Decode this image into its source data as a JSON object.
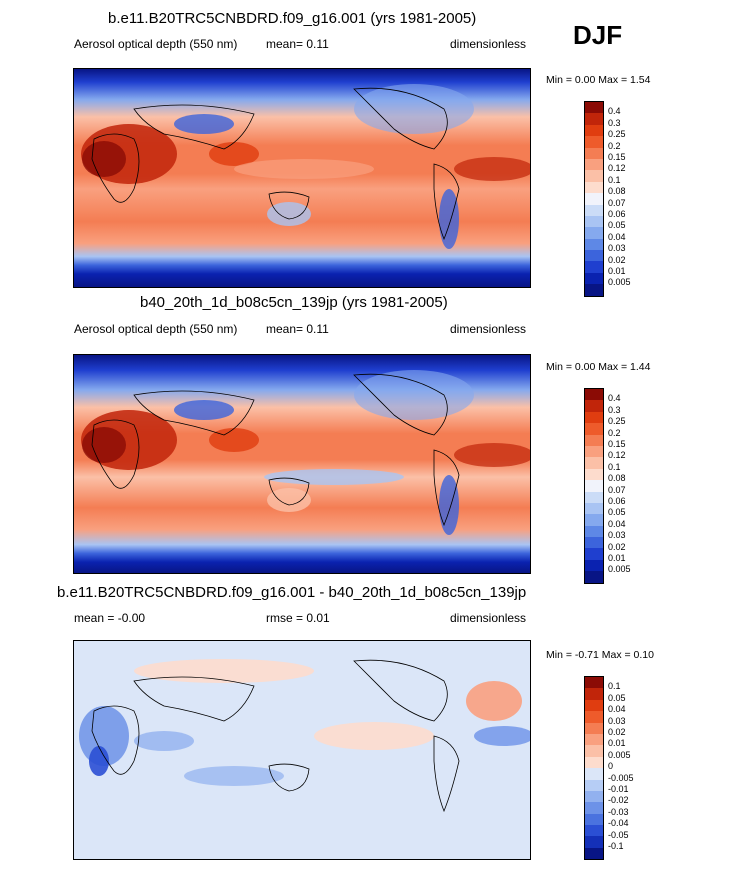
{
  "season": "DJF",
  "panels": [
    {
      "title": "b.e11.B20TRC5CNBDRD.f09_g16.001 (yrs 1981-2005)",
      "left": "Aerosol optical depth (550 nm)",
      "center": "mean=  0.11",
      "right": "dimensionless",
      "minmax": "Min =  0.00 Max =  1.54"
    },
    {
      "title": "b40_20th_1d_b08c5cn_139jp (yrs 1981-2005)",
      "left": "Aerosol optical depth (550 nm)",
      "center": "mean=  0.11",
      "right": "dimensionless",
      "minmax": "Min =  0.00 Max =  1.44"
    },
    {
      "title": "b.e11.B20TRC5CNBDRD.f09_g16.001 - b40_20th_1d_b08c5cn_139jp",
      "left": "mean =  -0.00",
      "center": "rmse =  0.01",
      "right": "dimensionless",
      "minmax": "Min =  -0.71 Max =  0.10"
    }
  ],
  "colorbars": {
    "abs": {
      "labels": [
        "0.4",
        "0.3",
        "0.25",
        "0.2",
        "0.15",
        "0.12",
        "0.1",
        "0.08",
        "0.07",
        "0.06",
        "0.05",
        "0.04",
        "0.03",
        "0.02",
        "0.01",
        "0.005"
      ],
      "colors": [
        "#8b0b05",
        "#c1250a",
        "#e03d10",
        "#ee5b2b",
        "#f47d53",
        "#f9a07f",
        "#fbc0a7",
        "#fddccd",
        "#f1f3fb",
        "#cbdcf7",
        "#a9c4f3",
        "#85a9ee",
        "#5e88e6",
        "#3c64dc",
        "#1f3fcf",
        "#0a22b0",
        "#081585"
      ]
    },
    "diff": {
      "labels": [
        "0.1",
        "0.05",
        "0.04",
        "0.03",
        "0.02",
        "0.01",
        "0.005",
        "0",
        "-0.005",
        "-0.01",
        "-0.02",
        "-0.03",
        "-0.04",
        "-0.05",
        "-0.1"
      ],
      "colors": [
        "#8b0b05",
        "#c1250a",
        "#e03d10",
        "#ee5b2b",
        "#f47d53",
        "#f9a07f",
        "#fbc0a7",
        "#fddccd",
        "#dbe6f8",
        "#b6cdf5",
        "#92b1ef",
        "#6d92e8",
        "#4a72df",
        "#2b4fd4",
        "#1430b8",
        "#081585"
      ]
    }
  },
  "chart_data": [
    {
      "type": "heatmap",
      "title": "b.e11.B20TRC5CNBDRD.f09_g16.001 (yrs 1981-2005)",
      "variable": "Aerosol optical depth (550 nm)",
      "units": "dimensionless",
      "mean": 0.11,
      "min": 0.0,
      "max": 1.54,
      "levels": [
        0.005,
        0.01,
        0.02,
        0.03,
        0.04,
        0.05,
        0.06,
        0.07,
        0.08,
        0.1,
        0.12,
        0.15,
        0.2,
        0.25,
        0.3,
        0.4
      ]
    },
    {
      "type": "heatmap",
      "title": "b40_20th_1d_b08c5cn_139jp (yrs 1981-2005)",
      "variable": "Aerosol optical depth (550 nm)",
      "units": "dimensionless",
      "mean": 0.11,
      "min": 0.0,
      "max": 1.44,
      "levels": [
        0.005,
        0.01,
        0.02,
        0.03,
        0.04,
        0.05,
        0.06,
        0.07,
        0.08,
        0.1,
        0.12,
        0.15,
        0.2,
        0.25,
        0.3,
        0.4
      ]
    },
    {
      "type": "heatmap",
      "title": "b.e11.B20TRC5CNBDRD.f09_g16.001 - b40_20th_1d_b08c5cn_139jp",
      "units": "dimensionless",
      "mean": -0.0,
      "rmse": 0.01,
      "min": -0.71,
      "max": 0.1,
      "levels": [
        -0.1,
        -0.05,
        -0.04,
        -0.03,
        -0.02,
        -0.01,
        -0.005,
        0,
        0.005,
        0.01,
        0.02,
        0.03,
        0.04,
        0.05,
        0.1
      ]
    }
  ]
}
